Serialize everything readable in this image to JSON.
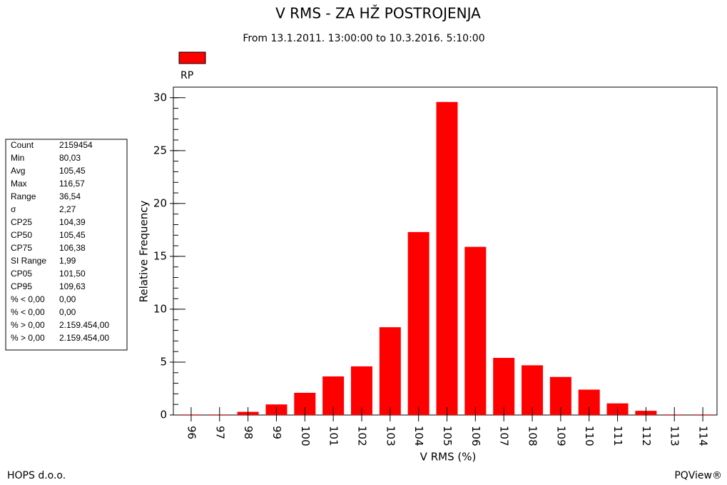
{
  "chart_data": {
    "type": "bar",
    "title": "V RMS - ZA HŽ POSTROJENJA",
    "subtitle": "From 13.1.2011. 13:00:00 to 10.3.2016. 5:10:00",
    "xlabel": "V RMS (%)",
    "ylabel": "Relative Frequency",
    "categories": [
      "96",
      "97",
      "98",
      "99",
      "100",
      "101",
      "102",
      "103",
      "104",
      "105",
      "106",
      "107",
      "108",
      "109",
      "110",
      "111",
      "112",
      "113",
      "114"
    ],
    "series": [
      {
        "name": "RP",
        "color": "#ff0000",
        "values": [
          0.05,
          0.05,
          0.3,
          1.0,
          2.1,
          3.65,
          4.6,
          8.3,
          17.3,
          29.6,
          15.9,
          5.4,
          4.7,
          3.6,
          2.4,
          1.1,
          0.4,
          0.05,
          0.05
        ]
      }
    ],
    "ylim": [
      0,
      31
    ],
    "yticks": [
      0,
      5,
      10,
      15,
      20,
      25,
      30
    ],
    "stats": [
      [
        "Count",
        "2159454"
      ],
      [
        "Min",
        "80,03"
      ],
      [
        "Avg",
        "105,45"
      ],
      [
        "Max",
        "116,57"
      ],
      [
        "Range",
        "36,54"
      ],
      [
        "σ",
        "2,27"
      ],
      [
        "CP25",
        "104,39"
      ],
      [
        "CP50",
        "105,45"
      ],
      [
        "CP75",
        "106,38"
      ],
      [
        "SI Range",
        "1,99"
      ],
      [
        "CP05",
        "101,50"
      ],
      [
        "CP95",
        "109,63"
      ],
      [
        "% < 0,00",
        "0,00"
      ],
      [
        "% < 0,00",
        "0,00"
      ],
      [
        "% > 0,00",
        "2.159.454,00"
      ],
      [
        "% > 0,00",
        "2.159.454,00"
      ]
    ]
  },
  "footer": {
    "left": "HOPS d.o.o.",
    "right": "PQView®"
  }
}
